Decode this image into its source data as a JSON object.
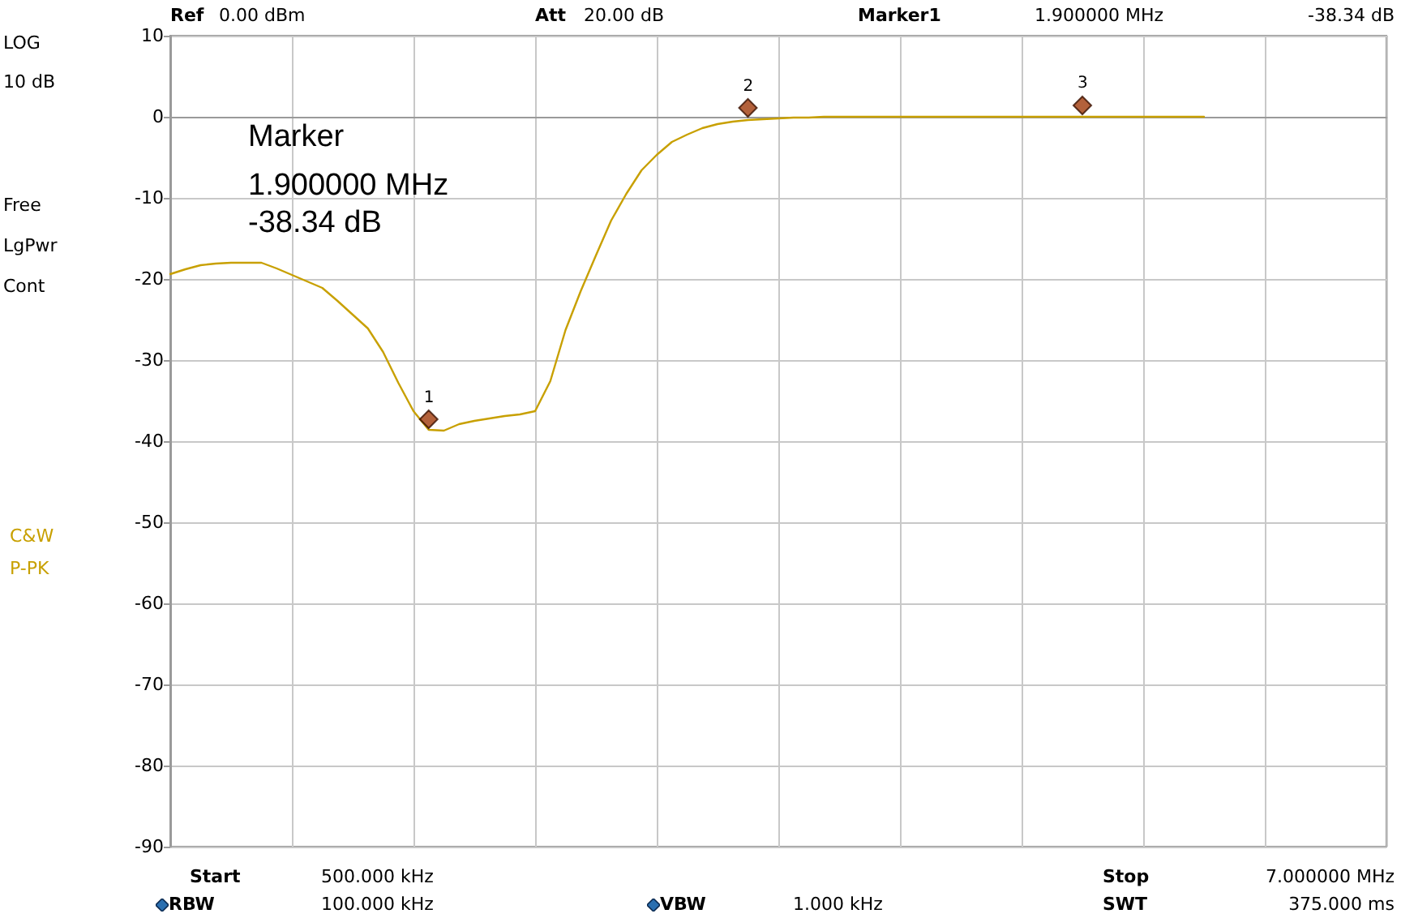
{
  "chart_data": {
    "type": "line",
    "categories": [
      null,
      null,
      null,
      null,
      null,
      null,
      null,
      null,
      null,
      null,
      null,
      null,
      null,
      null,
      null,
      null,
      null,
      null,
      null,
      null,
      null,
      null,
      null,
      null,
      null,
      null,
      null,
      null,
      null,
      null,
      null,
      null,
      null,
      null,
      null,
      null,
      null,
      null,
      null,
      null,
      null,
      null,
      null,
      null,
      null,
      null,
      null,
      null,
      null,
      null,
      null,
      null,
      null,
      null,
      null,
      null,
      null,
      null,
      null,
      null,
      null,
      null,
      null,
      null,
      null,
      null,
      null,
      null,
      null,
      null,
      null,
      null,
      null,
      null,
      null,
      null,
      null,
      null,
      null,
      null,
      null
    ],
    "series": [
      {
        "type": "line",
        "color": "#c8a000",
        "marker": "none",
        "values": [
          -19.4,
          -18.8,
          -18.3,
          -18.1,
          -18.0,
          -18.0,
          -18.0,
          -18.7,
          -19.5,
          -20.3,
          -21.1,
          -22.7,
          -24.4,
          -26.1,
          -29.0,
          -32.8,
          -36.3,
          -38.6,
          -38.7,
          -37.9,
          -37.5,
          -37.2,
          -36.9,
          -36.7,
          -36.3,
          -32.6,
          -26.3,
          -21.5,
          -17.1,
          -12.8,
          -9.5,
          -6.6,
          -4.7,
          -3.1,
          -2.2,
          -1.4,
          -0.9,
          -0.6,
          -0.4,
          -0.3,
          -0.2,
          -0.1,
          -0.1,
          0.0,
          0.0,
          0.0,
          0.0,
          0.0,
          0.0,
          0.0,
          0.0,
          0.0,
          0.0,
          0.0,
          0.0,
          0.0,
          0.0,
          0.0,
          0.0,
          0.0,
          0.0,
          0.0,
          0.0,
          0.0,
          0.0,
          0.0,
          0.0,
          0.0,
          0.0,
          null,
          null,
          null,
          null,
          null,
          null,
          null,
          null,
          null,
          null,
          null,
          null
        ]
      },
      {
        "type": "scatter",
        "color": "#a03a0a",
        "marker": "diamond",
        "values": [
          null,
          null,
          null,
          null,
          null,
          null,
          null,
          null,
          null,
          null,
          null,
          null,
          null,
          null,
          null,
          null,
          null,
          -37.3,
          null,
          null,
          null,
          null,
          null,
          null,
          null,
          null,
          null,
          null,
          null,
          null,
          null,
          null,
          null,
          null,
          null,
          null,
          null,
          null,
          1.1,
          null,
          null,
          null,
          null,
          null,
          null,
          null,
          null,
          null,
          null,
          null,
          null,
          null,
          null,
          null,
          null,
          null,
          null,
          null,
          null,
          null,
          1.4,
          null,
          null,
          null,
          null,
          null,
          null,
          null,
          null,
          null,
          null,
          null,
          null,
          null,
          null,
          null,
          null,
          null,
          null,
          null,
          null
        ]
      }
    ],
    "ylim": [
      -90,
      10
    ],
    "yticks": [
      -90,
      -80,
      -70,
      -60,
      -50,
      -40,
      -30,
      -20,
      -10,
      0,
      10
    ],
    "grid": true,
    "annotations": [
      "Ref",
      "0.00 dBm",
      "Att",
      "20.00 dB",
      "Marker1",
      "1.900000 MHz",
      "-38.34 dB",
      "LOG",
      "10 dB",
      "Free",
      "LgPwr",
      "Cont",
      "C&W",
      "P-PK",
      "Marker",
      "1.900000 MHz",
      "-38.34 dB",
      "Start",
      "500.000 kHz",
      "RBW",
      "100.000 kHz",
      "VBW",
      "1.000 kHz",
      "Stop",
      "7.000000 MHz",
      "SWT",
      "375.000 ms",
      {
        "text": "1",
        "y": -37.3
      },
      {
        "text": "2",
        "y": 1.1
      },
      {
        "text": "3",
        "y": 1.4
      }
    ]
  }
}
